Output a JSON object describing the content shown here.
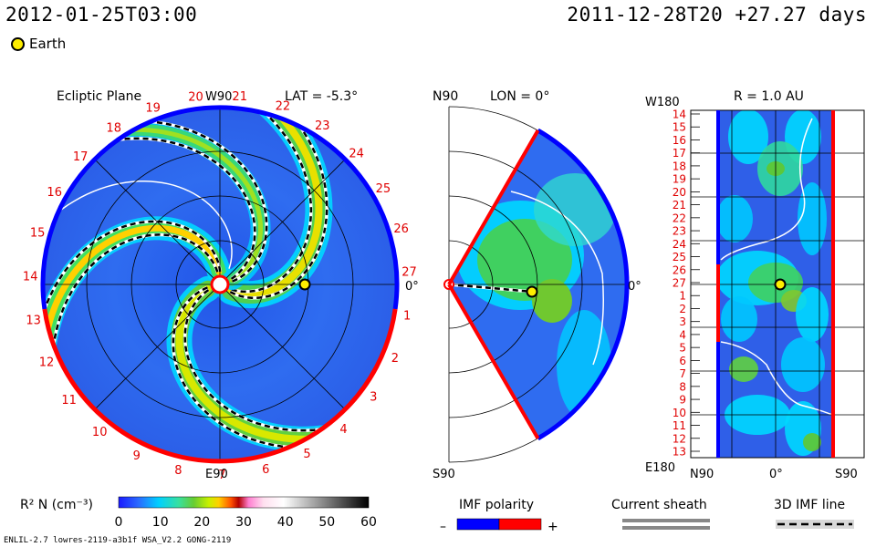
{
  "header": {
    "datetime": "2012-01-25T03:00",
    "reference": "2011-12-28T20 +27.27 days"
  },
  "legend_earth": "Earth",
  "colors": {
    "imf_negative": "#0000ff",
    "imf_positive": "#ff0000",
    "earth": "#ffee00",
    "sheath": "#888888"
  },
  "panels": {
    "ecliptic": {
      "title": "Ecliptic Plane",
      "lat_label": "LAT = -5.3°",
      "top_label": "W90",
      "bottom_label": "E90",
      "right_label": "0°",
      "carrington_ticks": [
        "1",
        "2",
        "3",
        "4",
        "5",
        "6",
        "7",
        "8",
        "9",
        "10",
        "11",
        "12",
        "13",
        "14",
        "15",
        "16",
        "17",
        "18",
        "19",
        "20",
        "21",
        "22",
        "23",
        "24",
        "25",
        "26",
        "27"
      ]
    },
    "meridional": {
      "title": "LON = 0°",
      "top_label": "N90",
      "bottom_label": "S90",
      "right_label": "0°"
    },
    "radial": {
      "title": "R = 1.0 AU",
      "top_label": "W180",
      "bottom_label": "E180",
      "x_labels": [
        "N90",
        "0°",
        "S90"
      ],
      "y_ticks": [
        "14",
        "15",
        "16",
        "17",
        "18",
        "19",
        "20",
        "21",
        "22",
        "23",
        "24",
        "25",
        "26",
        "27",
        "1",
        "2",
        "3",
        "4",
        "5",
        "6",
        "7",
        "8",
        "9",
        "10",
        "11",
        "12",
        "13"
      ]
    }
  },
  "colorbar": {
    "label": "R² N (cm⁻³)",
    "ticks": [
      "0",
      "10",
      "20",
      "30",
      "40",
      "50",
      "60"
    ]
  },
  "imf_legend": {
    "title": "IMF polarity",
    "minus": "–",
    "plus": "+"
  },
  "sheath_legend": "Current sheath",
  "imf_line_legend": "3D IMF line",
  "footer": "ENLIL-2.7 lowres-2119-a3b1f WSA_V2.2 GONG-2119",
  "chart_data": {
    "type": "heatmap",
    "title": "",
    "quantity": "R² N (cm⁻³)",
    "colorbar_range": [
      0,
      60
    ],
    "earth": {
      "carrington_lon_tick": "27",
      "r_au": 1.0
    },
    "imf_polarity_on_outer_boundary": [
      {
        "arc": "ecliptic 27 through 13",
        "polarity": "+"
      },
      {
        "arc": "ecliptic 14 through 26",
        "polarity": "-"
      }
    ]
  }
}
